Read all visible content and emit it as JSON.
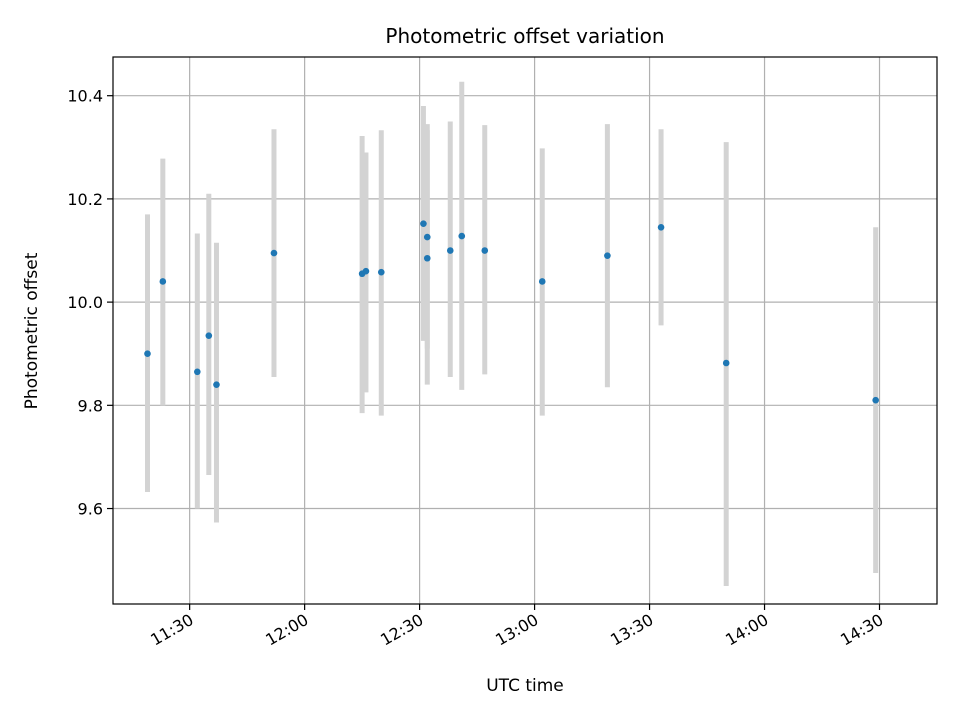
{
  "chart_data": {
    "type": "scatter",
    "title": "Photometric offset variation",
    "xlabel": "UTC time",
    "ylabel": "Photometric offset",
    "x_is_time": true,
    "xlim": [
      "11:10",
      "14:45"
    ],
    "ylim": [
      9.415,
      10.475
    ],
    "x_ticks": [
      "11:30",
      "12:00",
      "12:30",
      "13:00",
      "13:30",
      "14:00",
      "14:30"
    ],
    "y_ticks": [
      9.6,
      9.8,
      10.0,
      10.2,
      10.4
    ],
    "y_tick_labels": [
      "9.6",
      "9.8",
      "10.0",
      "10.2",
      "10.4"
    ],
    "grid": true,
    "colors": {
      "point": "#1f77b4",
      "errorbar": "#d3d3d3",
      "grid": "#b0b0b0",
      "axes": "#000000"
    },
    "series": [
      {
        "x": [
          "11:19",
          "11:23",
          "11:32",
          "11:35",
          "11:37",
          "11:52",
          "12:15",
          "12:16",
          "12:20",
          "12:31",
          "12:32",
          "12:32",
          "12:38",
          "12:41",
          "12:47",
          "13:02",
          "13:19",
          "13:33",
          "13:50",
          "14:29"
        ],
        "y": [
          9.9,
          10.04,
          9.865,
          9.935,
          9.84,
          10.095,
          10.055,
          10.06,
          10.058,
          10.152,
          10.126,
          10.085,
          10.1,
          10.128,
          10.1,
          10.04,
          10.09,
          10.145,
          9.882,
          9.81
        ],
        "yerr_low": [
          9.632,
          9.8,
          9.6,
          9.665,
          9.573,
          9.855,
          9.785,
          9.825,
          9.78,
          9.925,
          9.91,
          9.84,
          9.855,
          9.83,
          9.86,
          9.78,
          9.835,
          9.955,
          9.45,
          9.475
        ],
        "yerr_high": [
          10.17,
          10.278,
          10.133,
          10.21,
          10.115,
          10.335,
          10.322,
          10.29,
          10.333,
          10.38,
          10.345,
          10.333,
          10.35,
          10.427,
          10.343,
          10.298,
          10.345,
          10.335,
          10.31,
          10.145
        ]
      }
    ]
  }
}
